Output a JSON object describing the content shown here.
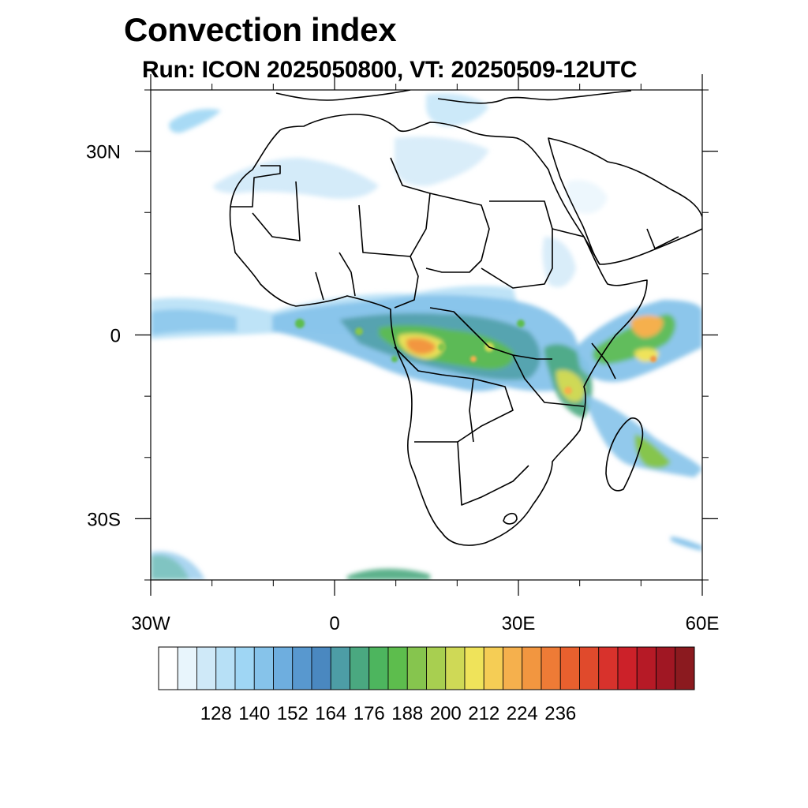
{
  "title": "Convection index",
  "subtitle": "Run: ICON 2025050800,  VT: 20250509-12UTC",
  "map": {
    "region": "Africa",
    "lon_range": [
      -30,
      60
    ],
    "lat_range": [
      -40,
      40
    ],
    "lon_ticks": [
      {
        "lon": -30,
        "label": "30W"
      },
      {
        "lon": 0,
        "label": "0"
      },
      {
        "lon": 30,
        "label": "30E"
      },
      {
        "lon": 60,
        "label": "60E"
      }
    ],
    "lat_ticks": [
      {
        "lat": 30,
        "label": "30N"
      },
      {
        "lat": 0,
        "label": "0"
      },
      {
        "lat": -30,
        "label": "30S"
      }
    ]
  },
  "colorbar": {
    "labels": [
      "128",
      "140",
      "152",
      "164",
      "176",
      "188",
      "200",
      "212",
      "224",
      "236"
    ],
    "colors": [
      "#ffffff",
      "#e8f5fc",
      "#cfe9f8",
      "#b7e0f6",
      "#9fd6f4",
      "#86c3ea",
      "#6eaedf",
      "#5898cf",
      "#4a88c0",
      "#4d9da6",
      "#4aa880",
      "#4db55e",
      "#5dbd4d",
      "#86c54e",
      "#a8cf50",
      "#cfd956",
      "#efe35a",
      "#f5cd55",
      "#f5b04d",
      "#f29640",
      "#ee7b36",
      "#e9602e",
      "#e04a2c",
      "#d8322c",
      "#cc2129",
      "#b61a26",
      "#a01723",
      "#8b1a1f"
    ]
  }
}
